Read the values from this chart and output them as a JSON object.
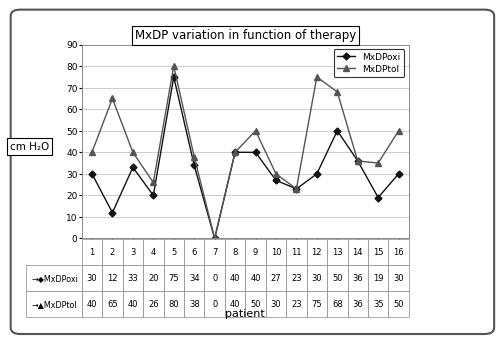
{
  "title": "MxDP variation in function of therapy",
  "xlabel": "patient",
  "ylabel": "cm H₂O",
  "patients": [
    1,
    2,
    3,
    4,
    5,
    6,
    7,
    8,
    9,
    10,
    11,
    12,
    13,
    14,
    15,
    16
  ],
  "MxDPoxi": [
    30,
    12,
    33,
    20,
    75,
    34,
    0,
    40,
    40,
    27,
    23,
    30,
    50,
    36,
    19,
    30
  ],
  "MxDPtol": [
    40,
    65,
    40,
    26,
    80,
    38,
    0,
    40,
    50,
    30,
    23,
    75,
    68,
    36,
    35,
    50
  ],
  "color_oxi": "#111111",
  "color_tol": "#555555",
  "ylim": [
    0,
    90
  ],
  "yticks": [
    0,
    10,
    20,
    30,
    40,
    50,
    60,
    70,
    80,
    90
  ],
  "legend_oxi": "MxDPoxi",
  "legend_tol": "MxDPtol",
  "bg_color": "#d8d8d8",
  "plot_bg": "#ffffff",
  "outer_bg": "#ffffff",
  "table_row1": [
    "30",
    "12",
    "33",
    "20",
    "75",
    "34",
    "0",
    "40",
    "40",
    "27",
    "23",
    "30",
    "50",
    "36",
    "19",
    "30"
  ],
  "table_row2": [
    "40",
    "65",
    "40",
    "26",
    "80",
    "38",
    "0",
    "40",
    "50",
    "30",
    "23",
    "75",
    "68",
    "36",
    "35",
    "50"
  ],
  "row_labels": [
    "→◆MxDPoxi",
    "→▲MxDPtol"
  ]
}
